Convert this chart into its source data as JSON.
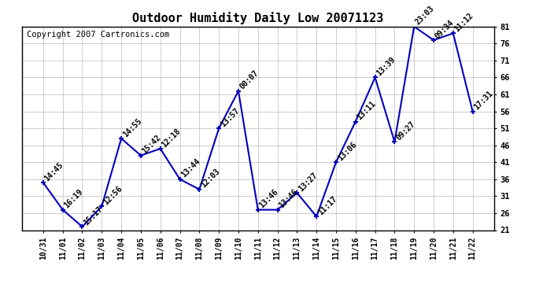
{
  "title": "Outdoor Humidity Daily Low 20071123",
  "copyright": "Copyright 2007 Cartronics.com",
  "x_labels": [
    "10/31",
    "11/01",
    "11/02",
    "11/03",
    "11/04",
    "11/05",
    "11/06",
    "11/07",
    "11/08",
    "11/09",
    "11/10",
    "11/11",
    "11/12",
    "11/13",
    "11/14",
    "11/15",
    "11/16",
    "11/17",
    "11/18",
    "11/19",
    "11/20",
    "11/21",
    "11/22"
  ],
  "y_values": [
    35,
    27,
    22,
    28,
    48,
    43,
    45,
    36,
    33,
    51,
    62,
    27,
    27,
    32,
    25,
    41,
    53,
    66,
    47,
    81,
    77,
    79,
    56
  ],
  "point_labels": [
    "14:45",
    "16:19",
    "15:17",
    "12:56",
    "14:55",
    "15:42",
    "12:18",
    "13:44",
    "12:03",
    "13:57",
    "00:07",
    "13:46",
    "13:46",
    "13:27",
    "11:17",
    "13:06",
    "13:11",
    "13:39",
    "09:27",
    "23:03",
    "09:34",
    "11:12",
    "17:31"
  ],
  "line_color": "#0000bb",
  "marker_color": "#0000bb",
  "bg_color": "#ffffff",
  "grid_color": "#bbbbbb",
  "ylim_min": 21,
  "ylim_max": 81,
  "yticks": [
    21,
    26,
    31,
    36,
    41,
    46,
    51,
    56,
    61,
    66,
    71,
    76,
    81
  ],
  "title_fontsize": 11,
  "copyright_fontsize": 7.5,
  "label_fontsize": 7
}
